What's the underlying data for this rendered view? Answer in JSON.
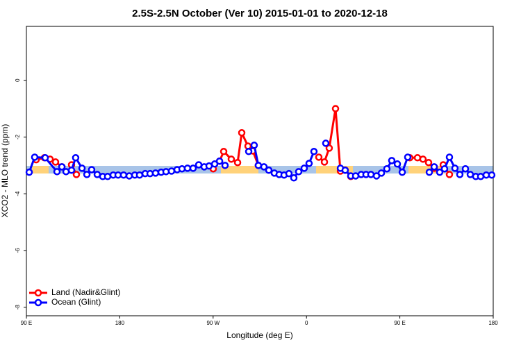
{
  "chart_data": {
    "type": "line",
    "title": "2.5S-2.5N October (Ver 10)   2015-01-01 to 2020-12-18",
    "x_label": "Longitude (deg E)",
    "y_label": "XCO2 - MLO trend (ppm)",
    "xlim": [
      90,
      540
    ],
    "ylim": [
      -8.3,
      1.9
    ],
    "xticks": [
      {
        "value": 90,
        "label": "90 E"
      },
      180,
      {
        "value": 270,
        "label": "90 W"
      },
      {
        "value": 360,
        "label": "0"
      },
      {
        "value": 450,
        "label": "90 E"
      },
      {
        "value": 540,
        "label": "180"
      }
    ],
    "yticks": [
      0,
      -2,
      -4,
      -6,
      -8
    ],
    "legend": "bottom-left",
    "series": [
      {
        "name": "Land (Nadir&Glint)",
        "color": "#ff0000",
        "x": [
          99.4,
          107.4,
          112.8,
          118.1,
          124.2,
          null,
          133.5,
          138.2,
          null,
          270.1,
          null,
          276.2,
          280.2,
          287.5,
          293.6,
          297.6,
          303.6,
          308.3,
          313.6,
          null,
          371.9,
          377.3,
          381.9,
          388.0,
          392.7,
          397.3,
          402.7,
          null,
          459.6,
          467.0,
          472.3,
          477.7,
          483.1,
          null,
          491.8,
          497.8
        ],
        "values": [
          -2.8,
          -2.73,
          -2.78,
          -2.88,
          -3.05,
          null,
          -2.98,
          -3.32,
          null,
          -3.12,
          null,
          -2.85,
          -2.51,
          -2.78,
          -2.9,
          -1.85,
          -2.32,
          -2.49,
          -3.0,
          null,
          -2.71,
          -2.88,
          -2.39,
          -1.0,
          -3.2,
          -3.17,
          -3.39,
          null,
          -2.73,
          -2.73,
          -2.78,
          -2.9,
          -3.1,
          null,
          -2.98,
          -3.32
        ]
      },
      {
        "name": "Ocean (Glint)",
        "color": "#0000ff",
        "x": [
          92.7,
          98.0,
          108.1,
          119.5,
          124.2,
          128.2,
          133.5,
          137.5,
          143.6,
          148.3,
          152.9,
          158.3,
          163.6,
          168.3,
          173.7,
          178.4,
          183.7,
          189.1,
          194.5,
          199.1,
          204.5,
          209.2,
          214.5,
          219.9,
          224.6,
          229.9,
          235.3,
          240.0,
          245.3,
          250.7,
          256.1,
          261.4,
          266.1,
          271.5,
          276.2,
          281.5,
          null,
          304.3,
          309.6,
          313.6,
          319.0,
          323.7,
          329.0,
          333.7,
          338.4,
          343.1,
          347.8,
          352.5,
          357.8,
          362.5,
          367.2,
          null,
          378.6,
          null,
          392.7,
          397.3,
          402.7,
          407.4,
          412.7,
          417.4,
          422.1,
          427.5,
          432.2,
          437.5,
          442.2,
          447.6,
          452.3,
          457.6,
          null,
          478.4,
          483.1,
          488.4,
          493.1,
          497.8,
          503.1,
          507.8,
          513.2,
          517.9,
          523.2,
          527.9,
          533.3,
          538.6
        ],
        "values": [
          -3.24,
          -2.71,
          -2.73,
          -3.22,
          -3.05,
          -3.22,
          -3.17,
          -2.73,
          -3.1,
          -3.32,
          -3.15,
          -3.32,
          -3.39,
          -3.39,
          -3.34,
          -3.34,
          -3.34,
          -3.37,
          -3.34,
          -3.34,
          -3.29,
          -3.29,
          -3.27,
          -3.24,
          -3.22,
          -3.2,
          -3.15,
          -3.12,
          -3.1,
          -3.1,
          -2.98,
          -3.05,
          -3.02,
          -2.95,
          -2.85,
          -3.0,
          null,
          -2.51,
          -2.29,
          -3.0,
          -3.05,
          -3.17,
          -3.27,
          -3.32,
          -3.34,
          -3.29,
          -3.44,
          -3.22,
          -3.1,
          -2.93,
          -2.51,
          null,
          -2.22,
          null,
          -3.1,
          -3.17,
          -3.37,
          -3.37,
          -3.32,
          -3.32,
          -3.32,
          -3.37,
          -3.27,
          -3.12,
          -2.83,
          -2.95,
          -3.24,
          -2.71,
          null,
          -3.24,
          -3.05,
          -3.24,
          -3.12,
          -2.71,
          -3.1,
          -3.32,
          -3.12,
          -3.32,
          -3.39,
          -3.39,
          -3.34,
          -3.34
        ]
      }
    ]
  }
}
